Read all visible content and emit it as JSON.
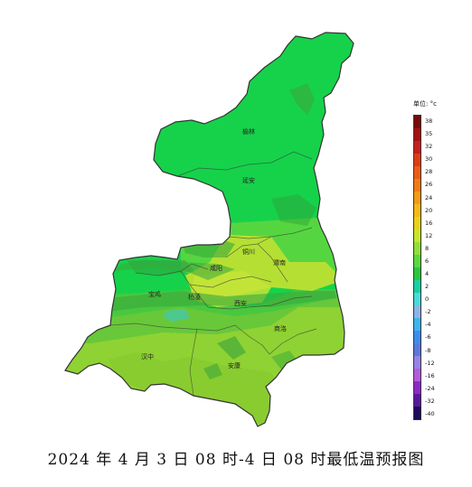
{
  "map": {
    "title": "2024 年 4 月 3 日 08 时-4 日 08 时最低温预报图",
    "cities": [
      "榆林",
      "延安",
      "铜川",
      "渭南",
      "咸阳",
      "宝鸡",
      "杨凌",
      "西安",
      "商洛",
      "汉中",
      "安康"
    ],
    "legend": {
      "unit": "单位: °c",
      "labels": [
        "38",
        "35",
        "32",
        "30",
        "28",
        "26",
        "24",
        "20",
        "16",
        "12",
        "8",
        "6",
        "4",
        "2",
        "0",
        "-2",
        "-4",
        "-6",
        "-8",
        "-12",
        "-16",
        "-24",
        "-32",
        "-40"
      ],
      "colors": [
        "#7a0a0a",
        "#a50f0f",
        "#c81e1e",
        "#e03c14",
        "#ee5a14",
        "#f27a14",
        "#f59a14",
        "#f5b914",
        "#ead216",
        "#c8e628",
        "#8ee03a",
        "#5ad83c",
        "#28c83c",
        "#14d2a0",
        "#46dcdc",
        "#8cb4e6",
        "#3cb4f0",
        "#3c8cf0",
        "#5a78dc",
        "#9682e6",
        "#b45adc",
        "#8c28c8",
        "#5a14a0",
        "#1e0a5a"
      ]
    }
  }
}
